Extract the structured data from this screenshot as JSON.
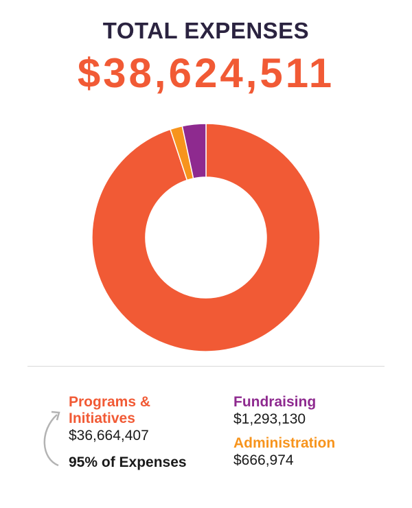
{
  "header": {
    "title": "TOTAL EXPENSES",
    "total": "$38,624,511"
  },
  "colors": {
    "title": "#2b2340",
    "programs": "#f15a35",
    "fundraising": "#8e2a8f",
    "administration": "#f7941d",
    "arrow": "#b3b3b3"
  },
  "legend": {
    "programs": {
      "name": "Programs & Initiatives",
      "amount": "$36,664,407",
      "share": "95% of Expenses"
    },
    "fundraising": {
      "name": "Fundraising",
      "amount": "$1,293,130"
    },
    "administration": {
      "name": "Administration",
      "amount": "$666,974"
    }
  },
  "chart_data": {
    "type": "pie",
    "donut": true,
    "title": "TOTAL EXPENSES",
    "total": 38624511,
    "series": [
      {
        "name": "Programs & Initiatives",
        "value": 36664407,
        "color": "#f15a35"
      },
      {
        "name": "Administration",
        "value": 666974,
        "color": "#f7941d"
      },
      {
        "name": "Fundraising",
        "value": 1293130,
        "color": "#8e2a8f"
      }
    ]
  }
}
